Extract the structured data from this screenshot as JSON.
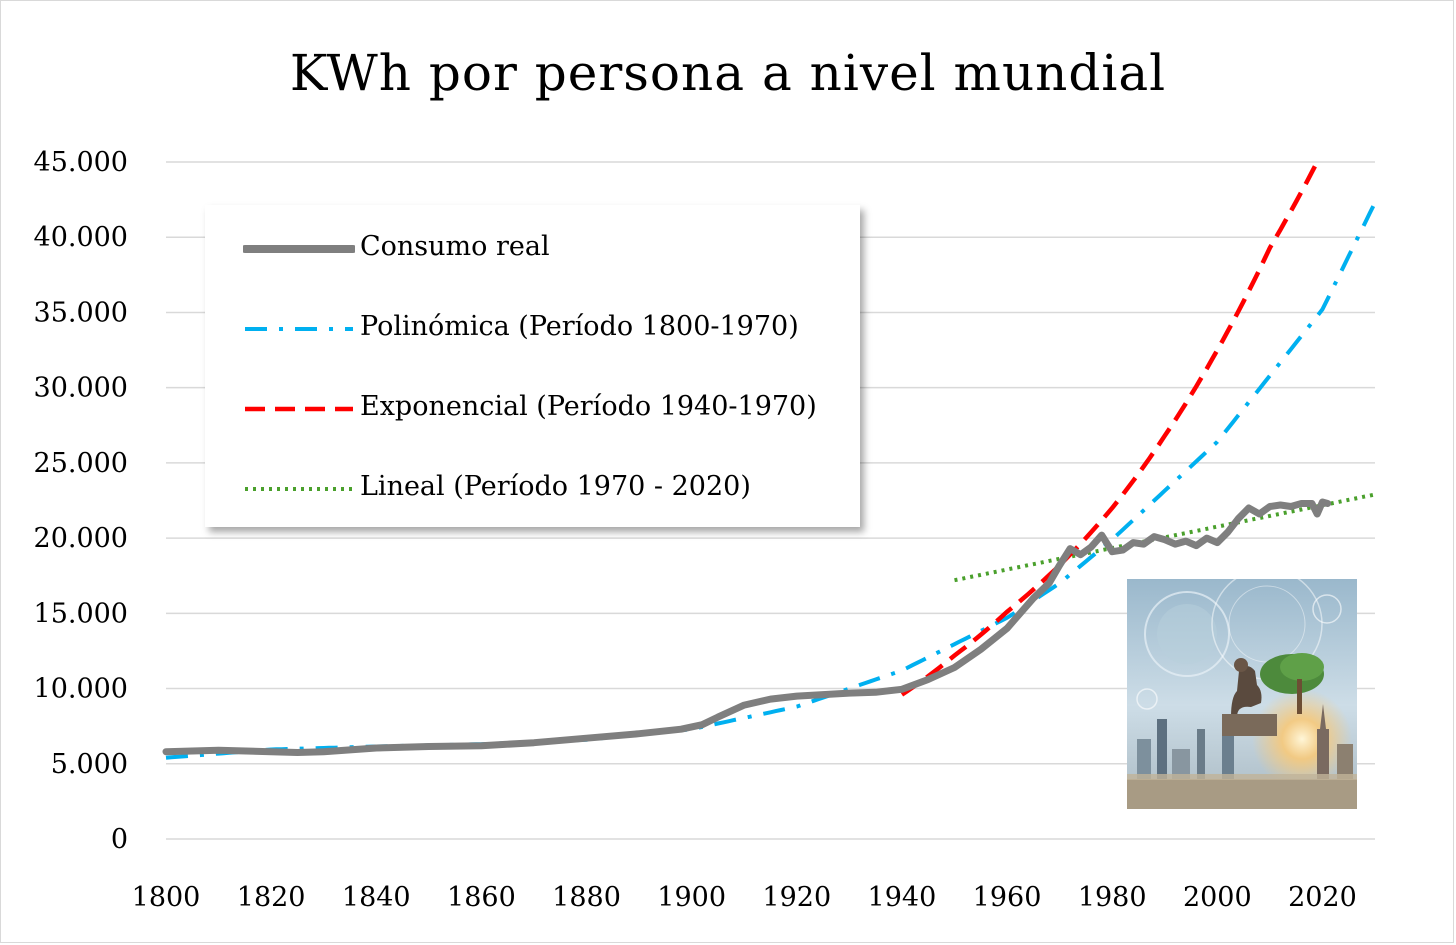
{
  "chart_data": {
    "type": "line",
    "title": "KWh por persona a nivel mundial",
    "xlabel": "",
    "ylabel": "",
    "xlim": [
      1800,
      2030
    ],
    "ylim": [
      0,
      45000
    ],
    "x_ticks": [
      "1800",
      "1820",
      "1840",
      "1860",
      "1880",
      "1900",
      "1920",
      "1940",
      "1960",
      "1980",
      "2000",
      "2020"
    ],
    "y_ticks": [
      "0",
      "5.000",
      "10.000",
      "15.000",
      "20.000",
      "25.000",
      "30.000",
      "35.000",
      "40.000",
      "45.000"
    ],
    "grid": "horizontal",
    "legend_position": "top-left",
    "series": [
      {
        "name": "Consumo real",
        "style": "solid",
        "color": "#7f7f7f",
        "x": [
          1800,
          1810,
          1820,
          1825,
          1830,
          1840,
          1850,
          1860,
          1870,
          1880,
          1890,
          1898,
          1902,
          1905,
          1910,
          1915,
          1920,
          1925,
          1930,
          1935,
          1940,
          1945,
          1950,
          1955,
          1960,
          1965,
          1968,
          1970,
          1972,
          1974,
          1976,
          1978,
          1980,
          1982,
          1984,
          1986,
          1988,
          1990,
          1992,
          1994,
          1996,
          1998,
          2000,
          2002,
          2004,
          2006,
          2008,
          2010,
          2012,
          2014,
          2016,
          2018,
          2019,
          2020,
          2021
        ],
        "values": [
          5800,
          5900,
          5800,
          5750,
          5800,
          6050,
          6150,
          6200,
          6400,
          6700,
          7000,
          7300,
          7600,
          8100,
          8900,
          9300,
          9500,
          9600,
          9700,
          9750,
          9950,
          10600,
          11400,
          12600,
          14000,
          16000,
          17000,
          18200,
          19300,
          18900,
          19400,
          20200,
          19100,
          19200,
          19700,
          19600,
          20100,
          19900,
          19600,
          19800,
          19500,
          20000,
          19700,
          20400,
          21300,
          22000,
          21600,
          22100,
          22200,
          22100,
          22300,
          22300,
          21600,
          22400,
          22300
        ]
      },
      {
        "name": "Polinómica (Período 1800-1970)",
        "style": "dash-dot",
        "color": "#00b0f0",
        "trend": "polynomial",
        "x_range": [
          1800,
          2030
        ],
        "values_at": {
          "1800": 5400,
          "1820": 5950,
          "1840": 6150,
          "1860": 6300,
          "1880": 6600,
          "1900": 7300,
          "1920": 8800,
          "1940": 11200,
          "1960": 14700,
          "1970": 17000,
          "1980": 19900,
          "2000": 26400,
          "2020": 35200,
          "2030": 42300
        }
      },
      {
        "name": "Exponencial (Período 1940-1970)",
        "style": "dashed",
        "color": "#ff0000",
        "trend": "exponential",
        "x_range": [
          1940,
          2019
        ],
        "values_at": {
          "1940": 9600,
          "1950": 12200,
          "1960": 15100,
          "1970": 18200,
          "1980": 22000,
          "1990": 26800,
          "2000": 32500,
          "2010": 39300,
          "2019": 45000
        }
      },
      {
        "name": "Lineal (Período 1970 - 2020)",
        "style": "dotted",
        "color": "#4aa02c",
        "trend": "linear",
        "x_range": [
          1950,
          2030
        ],
        "values_at": {
          "1950": 17200,
          "2030": 22900
        }
      }
    ]
  },
  "image": {
    "name": "pensador-ciudad-futurista",
    "palette": [
      "#8eb0c6",
      "#c9dbe6",
      "#4e6a80",
      "#b59a6e",
      "#f4c27a",
      "#4a8a3a"
    ]
  }
}
